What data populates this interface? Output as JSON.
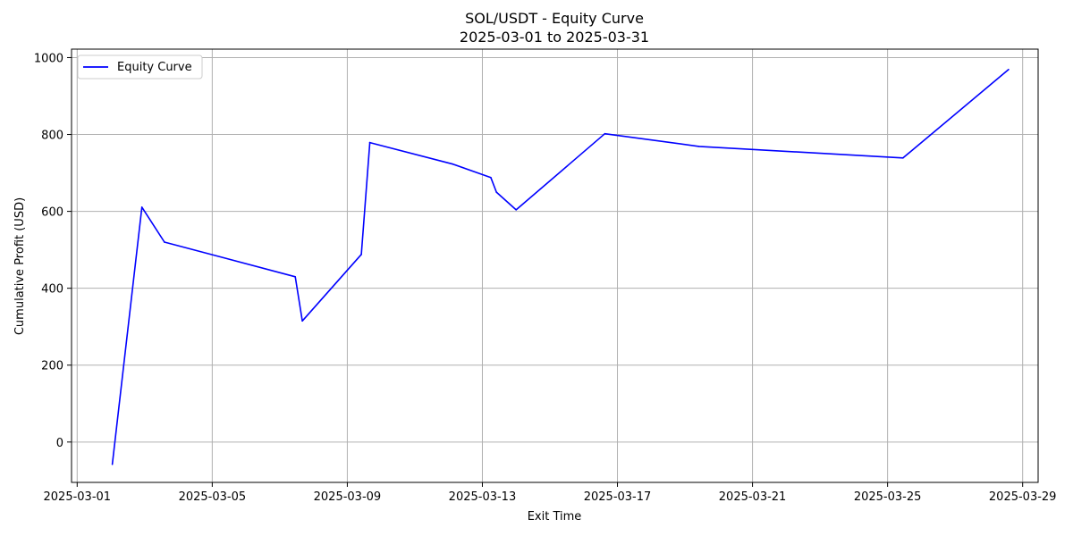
{
  "chart_data": {
    "type": "line",
    "title": "SOL/USDT - Equity Curve",
    "subtitle": "2025-03-01 to 2025-03-31",
    "xlabel": "Exit Time",
    "ylabel": "Cumulative Profit (USD)",
    "xlim": [
      "2025-02-28 20:00",
      "2025-03-29 11:00"
    ],
    "ylim": [
      -105,
      1022
    ],
    "x_ticks": [
      "2025-03-01",
      "2025-03-05",
      "2025-03-09",
      "2025-03-13",
      "2025-03-17",
      "2025-03-21",
      "2025-03-25",
      "2025-03-29"
    ],
    "y_ticks": [
      0,
      200,
      400,
      600,
      800,
      1000
    ],
    "grid": true,
    "legend": {
      "position": "top-left",
      "entries": [
        "Equity Curve"
      ]
    },
    "series": [
      {
        "name": "Equity Curve",
        "color": "#0000ff",
        "x": [
          "2025-03-02 01:00",
          "2025-03-02 22:00",
          "2025-03-03 14:00",
          "2025-03-07 11:00",
          "2025-03-07 16:00",
          "2025-03-09 10:00",
          "2025-03-09 16:00",
          "2025-03-12 03:00",
          "2025-03-13 06:00",
          "2025-03-13 10:00",
          "2025-03-14 00:00",
          "2025-03-16 15:00",
          "2025-03-19 10:00",
          "2025-03-25 11:00",
          "2025-03-28 14:00"
        ],
        "values": [
          -58,
          611,
          520,
          430,
          315,
          488,
          779,
          723,
          688,
          650,
          604,
          802,
          769,
          739,
          969
        ]
      }
    ]
  }
}
